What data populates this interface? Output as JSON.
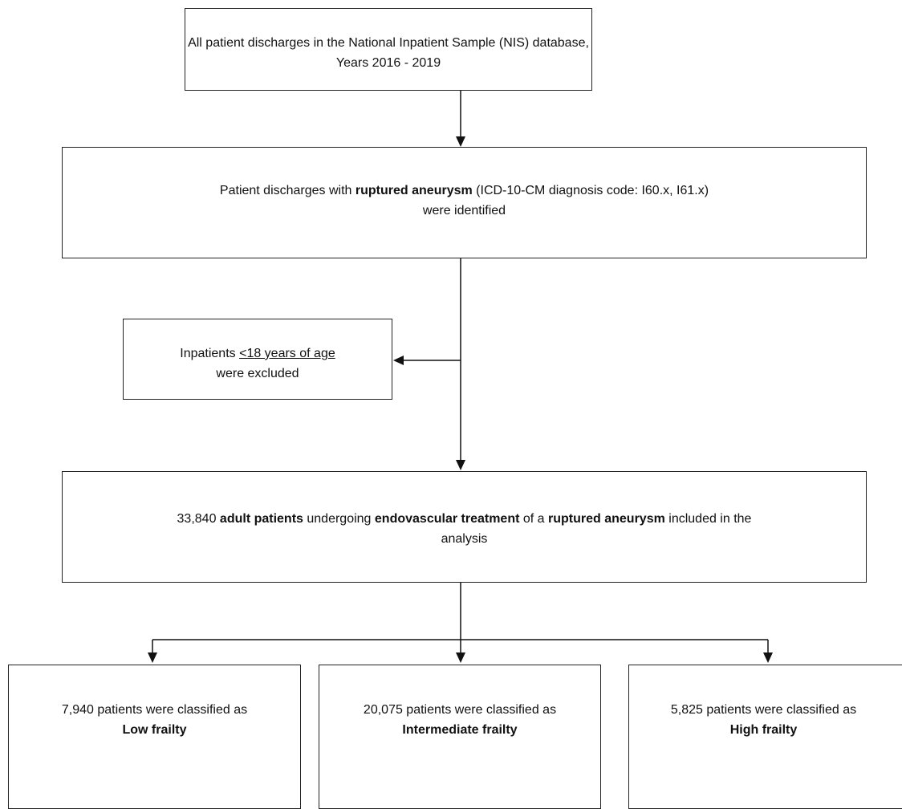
{
  "nodes": [
    {
      "lines": [
        [
          "All patient discharges in the National Inpatient Sample (NIS) database,"
        ],
        [
          "Years 2016 - 2019"
        ]
      ]
    },
    {
      "lines": [
        [
          "Patient discharges with ",
          "ruptured aneurysm",
          " (ICD-10-CM diagnosis code: I60.x, I61.x)"
        ],
        [
          "were identified"
        ]
      ]
    },
    {
      "lines": [
        [
          "Inpatients ",
          "<18 years of age"
        ],
        [
          "were excluded"
        ]
      ]
    },
    {
      "lines": [
        [
          "33,840 ",
          "adult patients",
          " undergoing ",
          "endovascular treatment",
          " of a ",
          "ruptured aneurysm",
          " included in the"
        ],
        [
          "analysis"
        ]
      ]
    },
    {
      "lines": [
        [
          "7,940 patients were classified as"
        ],
        [
          "Low frailty"
        ]
      ]
    },
    {
      "lines": [
        [
          "20,075 patients were classified as"
        ],
        [
          "Intermediate frailty"
        ]
      ]
    },
    {
      "lines": [
        [
          "5,825 patients were classified as"
        ],
        [
          "High frailty"
        ]
      ]
    }
  ]
}
